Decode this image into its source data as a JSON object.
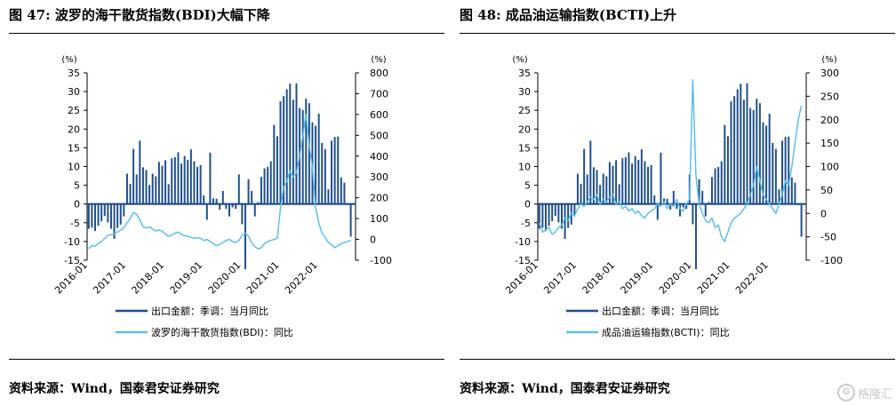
{
  "figures": [
    {
      "title": "图 47: 波罗的海干散货指数(BDI)大幅下降",
      "source": "资料来源：Wind，国泰君安证券研究"
    },
    {
      "title": "图 48: 成品油运输指数(BCTI)上升",
      "source": "资料来源：Wind，国泰君安证券研究"
    }
  ],
  "watermark": "格隆汇",
  "colors": {
    "bar": "#1f4e8c",
    "line": "#5bc0eb",
    "zero": "#1f4e8c",
    "axis": "#000000"
  },
  "chart_data": [
    {
      "type": "bar+line",
      "left_unit": "(%)",
      "right_unit": "(%)",
      "left_ticks": [
        35,
        30,
        25,
        20,
        15,
        10,
        5,
        0,
        -5,
        -10,
        -15
      ],
      "right_ticks": [
        800,
        700,
        600,
        500,
        400,
        300,
        200,
        100,
        0,
        -100
      ],
      "ylim_left": [
        -15,
        35
      ],
      "ylim_right": [
        -100,
        800
      ],
      "x_ticks": [
        "2016-01",
        "2017-01",
        "2018-01",
        "2019-01",
        "2020-01",
        "2021-01",
        "2022-01"
      ],
      "series": [
        {
          "name": "出口金额：季调：当月同比",
          "kind": "bar",
          "axis": "left",
          "start": "2016-01",
          "values": [
            -6.6,
            -6.3,
            -7.2,
            -5.8,
            -4.6,
            -3.2,
            -4.9,
            -6.6,
            -9.3,
            -6.4,
            -5.5,
            -3.3,
            8.1,
            5.4,
            14.7,
            7.9,
            16.9,
            9.8,
            9.1,
            5.1,
            8.1,
            7.4,
            11.2,
            10.2,
            11.7,
            5.3,
            12.2,
            12.5,
            13.8,
            10.8,
            12.8,
            11.8,
            14.6,
            11.4,
            9.9,
            10.4,
            2.3,
            -4.2,
            13.7,
            1.5,
            1.4,
            -1.5,
            3.5,
            -1.3,
            -3.3,
            -0.9,
            -1.3,
            7.9,
            -5.4,
            -17.4,
            6.6,
            3.5,
            -3.3,
            0.5,
            7.2,
            9.5,
            9.9,
            11.4,
            21.1,
            18.1,
            27.4,
            28.8,
            30.6,
            32.1,
            27.8,
            32.2,
            25.6,
            25.1,
            28.1,
            26.9,
            21.8,
            20.9,
            24.1,
            16.3,
            14.7,
            3.9,
            16.9,
            17.9,
            18.0,
            7.1,
            5.7,
            -0.3,
            -8.7
          ],
          "note": "values estimated from bar heights in the figure"
        },
        {
          "name": "波罗的海干散货指数(BDI)：同比",
          "kind": "line",
          "axis": "right",
          "start": "2016-01",
          "values": [
            -45,
            -30,
            -32,
            -20,
            -10,
            5,
            20,
            22,
            28,
            36,
            45,
            55,
            80,
            100,
            130,
            120,
            95,
            60,
            55,
            60,
            50,
            40,
            45,
            40,
            25,
            15,
            20,
            30,
            35,
            25,
            18,
            15,
            10,
            5,
            8,
            5,
            -5,
            0,
            -10,
            -20,
            -30,
            -25,
            -15,
            -5,
            0,
            -10,
            -15,
            -5,
            20,
            30,
            15,
            -15,
            -35,
            -45,
            -40,
            -20,
            -10,
            -5,
            0,
            5,
            150,
            250,
            280,
            330,
            300,
            320,
            400,
            500,
            600,
            450,
            350,
            150,
            80,
            30,
            10,
            -15,
            -25,
            -40,
            -30,
            -20,
            -15,
            -10,
            -5
          ]
        }
      ]
    },
    {
      "type": "bar+line",
      "left_unit": "(%)",
      "right_unit": "(%)",
      "left_ticks": [
        35,
        30,
        25,
        20,
        15,
        10,
        5,
        0,
        -5,
        -10,
        -15
      ],
      "right_ticks": [
        300,
        250,
        200,
        150,
        100,
        50,
        0,
        -50,
        -100
      ],
      "ylim_left": [
        -15,
        35
      ],
      "ylim_right": [
        -100,
        300
      ],
      "x_ticks": [
        "2016-01",
        "2017-01",
        "2018-01",
        "2019-01",
        "2020-01",
        "2021-01",
        "2022-01"
      ],
      "series": [
        {
          "name": "出口金额：季调：当月同比",
          "kind": "bar",
          "axis": "left",
          "start": "2016-01",
          "values": [
            -6.6,
            -6.3,
            -7.2,
            -5.8,
            -4.6,
            -3.2,
            -4.9,
            -6.6,
            -9.3,
            -6.4,
            -5.5,
            -3.3,
            8.1,
            5.4,
            14.7,
            7.9,
            16.9,
            9.8,
            9.1,
            5.1,
            8.1,
            7.4,
            11.2,
            10.2,
            11.7,
            5.3,
            12.2,
            12.5,
            13.8,
            10.8,
            12.8,
            11.8,
            14.6,
            11.4,
            9.9,
            10.4,
            2.3,
            -4.2,
            13.7,
            1.5,
            1.4,
            -1.5,
            3.5,
            -1.3,
            -3.3,
            -0.9,
            -1.3,
            7.9,
            -5.4,
            -17.4,
            6.6,
            3.5,
            -3.3,
            0.5,
            7.2,
            9.5,
            9.9,
            11.4,
            21.1,
            18.1,
            27.4,
            28.8,
            30.6,
            32.1,
            27.8,
            32.2,
            25.6,
            25.1,
            28.1,
            26.9,
            21.8,
            20.9,
            24.1,
            16.3,
            14.7,
            3.9,
            16.9,
            17.9,
            18.0,
            7.1,
            5.7,
            -0.3,
            -8.7
          ],
          "note": "values estimated from bar heights in the figure"
        },
        {
          "name": "成品油运输指数(BCTI)：同比",
          "kind": "line",
          "axis": "right",
          "start": "2016-01",
          "values": [
            -20,
            -40,
            -35,
            -30,
            -45,
            -40,
            -30,
            -25,
            -10,
            -15,
            0,
            -5,
            10,
            20,
            15,
            25,
            35,
            30,
            40,
            20,
            30,
            25,
            35,
            40,
            20,
            25,
            10,
            15,
            5,
            10,
            0,
            5,
            -5,
            -10,
            0,
            5,
            10,
            20,
            15,
            25,
            10,
            20,
            15,
            30,
            10,
            5,
            20,
            30,
            285,
            80,
            20,
            0,
            -15,
            -20,
            -10,
            -30,
            -25,
            -50,
            -60,
            -40,
            -20,
            -10,
            -5,
            0,
            10,
            20,
            40,
            60,
            100,
            70,
            40,
            30,
            20,
            10,
            0,
            20,
            40,
            70,
            60,
            100,
            150,
            200,
            230
          ]
        }
      ]
    }
  ]
}
